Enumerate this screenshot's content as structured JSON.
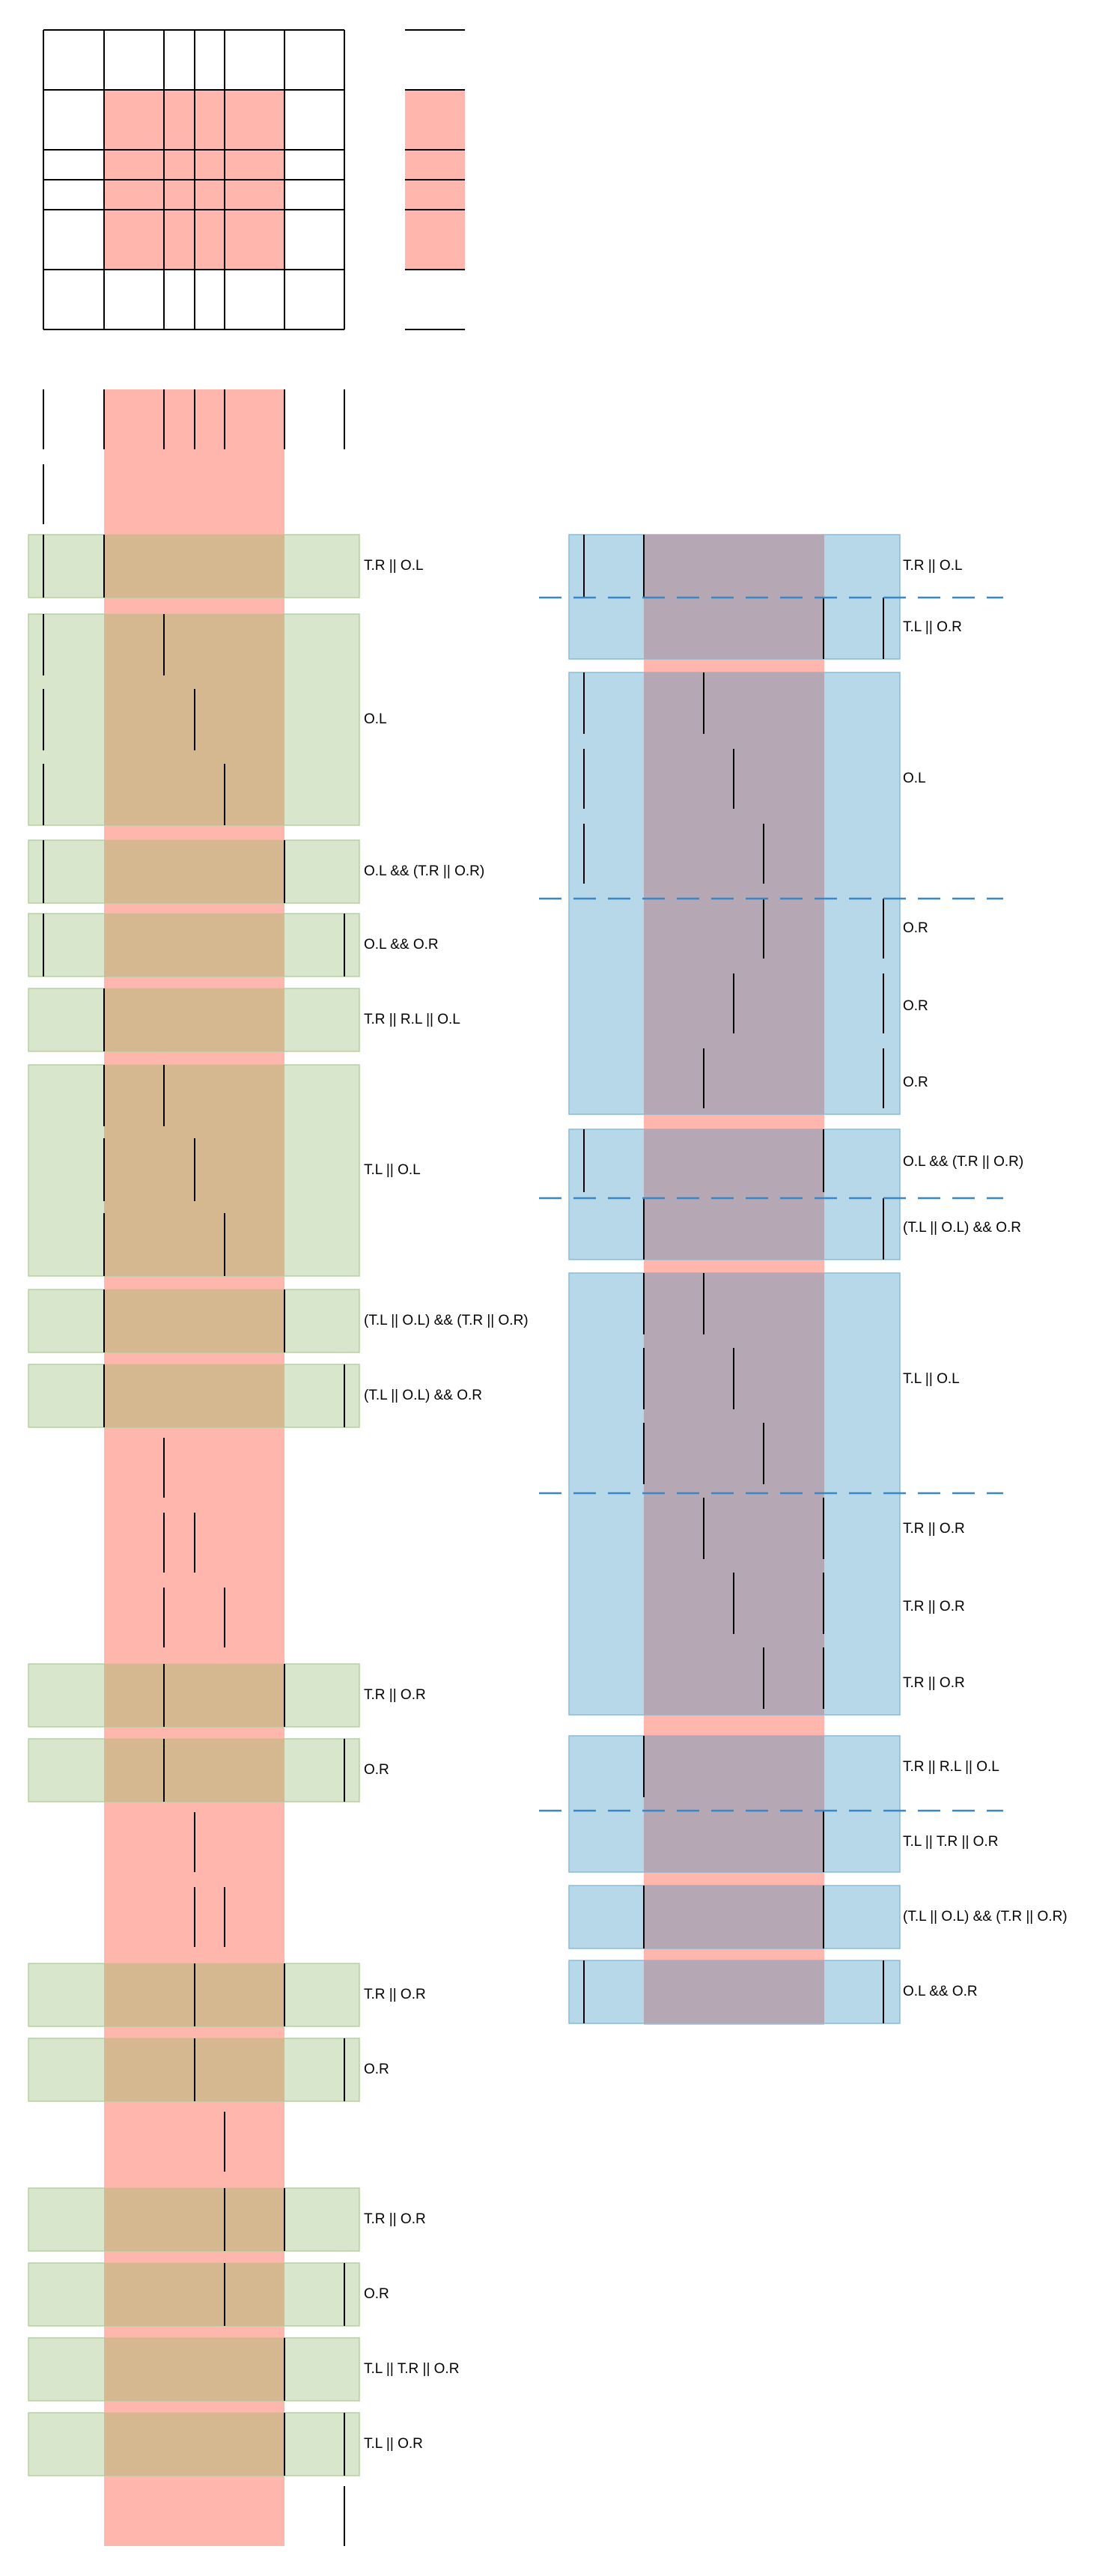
{
  "colors": {
    "highlight_red": "#ffb6ad",
    "overlap_green": "#d8e6cc",
    "overlap_green_edge": "#b5d1a0",
    "overlap_blue": "#b6d8e8",
    "overlap_blue_edge": "#87bcd9",
    "overlap_mixed_left": "#d6b890",
    "overlap_mixed_right": "#b5a8b4",
    "divider_dash": "#3a87c8",
    "line": "#000000"
  },
  "left_column": {
    "labels": [
      "T.R || O.L",
      "O.L",
      "O.L && (T.R || O.R)",
      "O.L && O.R",
      "T.R || R.L || O.L",
      "T.L || O.L",
      "(T.L || O.L) && (T.R || O.R)",
      "(T.L || O.L) && O.R",
      "T.R || O.R",
      "O.R",
      "T.R || O.R",
      "O.R",
      "T.R || O.R",
      "O.R",
      "T.L || T.R || O.R",
      "T.L || O.R"
    ]
  },
  "right_column": {
    "labels": [
      "T.R || O.L",
      "T.L || O.R",
      "O.L",
      "O.R",
      "O.R",
      "O.R",
      "O.L && (T.R || O.R)",
      "(T.L || O.L) && O.R",
      "T.L || O.L",
      "T.R || O.R",
      "T.R || O.R",
      "T.R || O.R",
      "T.R || R.L || O.L",
      "T.L || T.R || O.R",
      "(T.L || O.L) && (T.R || O.R)",
      "O.L && O.R"
    ]
  }
}
